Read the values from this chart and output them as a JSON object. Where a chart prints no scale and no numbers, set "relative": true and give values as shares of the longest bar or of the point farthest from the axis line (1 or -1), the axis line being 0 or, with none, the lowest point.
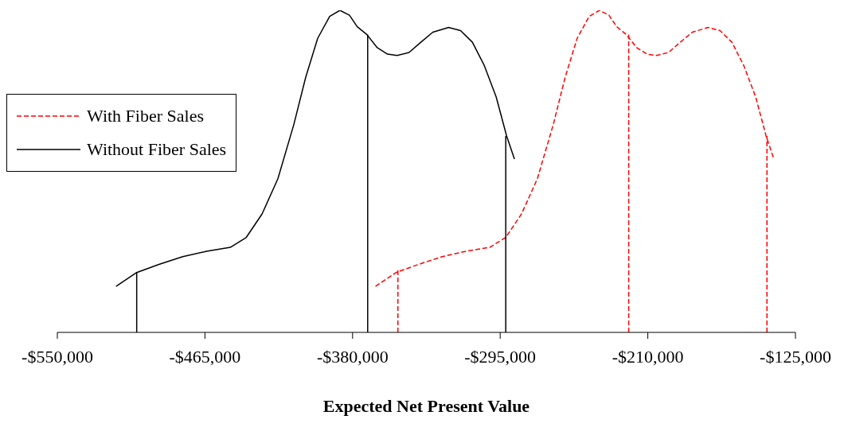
{
  "chart_data": {
    "type": "line",
    "xlabel": "Expected Net Present Value",
    "relative": true,
    "xlim": [
      -550000,
      -125000
    ],
    "xticks": [
      {
        "value": -550000,
        "label": "-$550,000"
      },
      {
        "value": -465000,
        "label": "-$465,000"
      },
      {
        "value": -380000,
        "label": "-$380,000"
      },
      {
        "value": -295000,
        "label": "-$295,000"
      },
      {
        "value": -210000,
        "label": "-$210,000"
      },
      {
        "value": -125000,
        "label": "-$125,000"
      }
    ],
    "grid": false,
    "legend": "left",
    "marker": "none",
    "series": [
      {
        "name": "With Fiber Sales",
        "color": "#ff0000",
        "line_style": "dashed",
        "x": [
          -366800,
          -354900,
          -342100,
          -328400,
          -314700,
          -301000,
          -291800,
          -282700,
          -273600,
          -264400,
          -257600,
          -250700,
          -243800,
          -237900,
          -232400,
          -227900,
          -222400,
          -216400,
          -210500,
          -205000,
          -198100,
          -191300,
          -184400,
          -175300,
          -168400,
          -161600,
          -154700,
          -147900,
          -141900,
          -137400
        ],
        "values": [
          0.143,
          0.186,
          0.211,
          0.235,
          0.252,
          0.264,
          0.295,
          0.368,
          0.477,
          0.646,
          0.792,
          0.913,
          0.981,
          1.0,
          0.985,
          0.949,
          0.925,
          0.884,
          0.864,
          0.86,
          0.869,
          0.901,
          0.932,
          0.947,
          0.937,
          0.901,
          0.828,
          0.731,
          0.61,
          0.538
        ]
      },
      {
        "name": "Without Fiber Sales",
        "color": "#000000",
        "line_style": "solid",
        "x": [
          -516200,
          -504300,
          -491500,
          -477800,
          -464100,
          -450400,
          -441200,
          -432100,
          -423000,
          -413800,
          -407000,
          -400100,
          -393200,
          -387300,
          -381800,
          -377300,
          -371800,
          -365800,
          -359900,
          -354400,
          -347500,
          -340700,
          -333800,
          -324700,
          -317800,
          -311000,
          -304100,
          -297300,
          -291300,
          -286800
        ],
        "values": [
          0.143,
          0.186,
          0.211,
          0.235,
          0.252,
          0.264,
          0.295,
          0.368,
          0.477,
          0.646,
          0.792,
          0.913,
          0.981,
          1.0,
          0.985,
          0.949,
          0.925,
          0.884,
          0.864,
          0.86,
          0.869,
          0.901,
          0.932,
          0.947,
          0.937,
          0.901,
          0.828,
          0.731,
          0.61,
          0.538
        ]
      },
      {
        "type": "line",
        "color": "#000000",
        "line_style": "solid",
        "x": [
          -504300,
          -504300
        ],
        "values": [
          0,
          0.186
        ]
      },
      {
        "type": "line",
        "color": "#000000",
        "line_style": "solid",
        "x": [
          -371300,
          -371300
        ],
        "values": [
          0,
          0.925
        ]
      },
      {
        "type": "line",
        "color": "#000000",
        "line_style": "solid",
        "x": [
          -291800,
          -291800
        ],
        "values": [
          0,
          0.61
        ]
      },
      {
        "type": "line",
        "color": "#ff0000",
        "line_style": "dashed",
        "x": [
          -353900,
          -353900
        ],
        "values": [
          0,
          0.194
        ]
      },
      {
        "type": "line",
        "color": "#ff0000",
        "line_style": "dashed",
        "x": [
          -221000,
          -221000
        ],
        "values": [
          0,
          0.925
        ]
      },
      {
        "type": "line",
        "color": "#ff0000",
        "line_style": "dashed",
        "x": [
          -141400,
          -141400
        ],
        "values": [
          0,
          0.61
        ]
      }
    ]
  }
}
